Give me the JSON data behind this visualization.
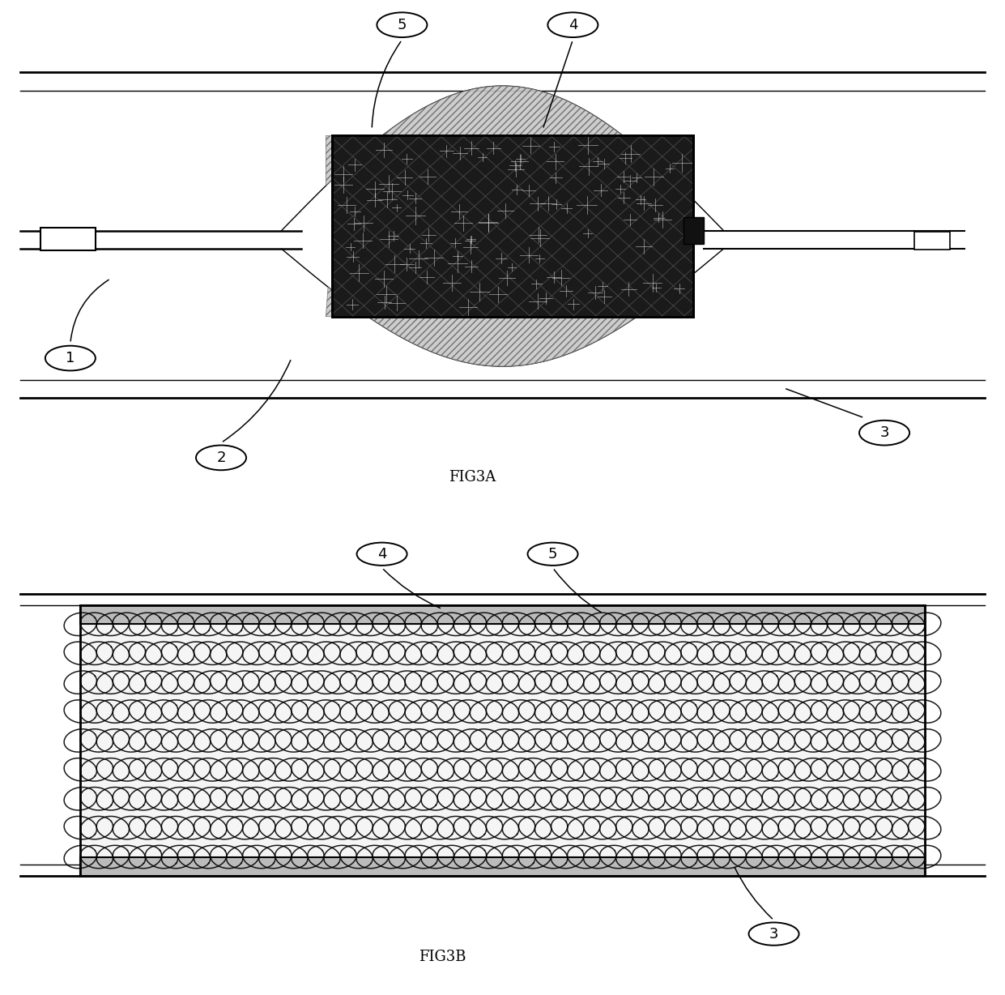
{
  "bg_color": "#ffffff",
  "fig3a_label": "FIG3A",
  "fig3b_label": "FIG3B",
  "fig_width": 12.41,
  "fig_height": 12.28,
  "stent_dark": "#1a1a1a",
  "stent_mesh_bg": "#f0f0f0",
  "hatch_fill": "#c8c8c8",
  "vessel_gray": "#aaaaaa"
}
